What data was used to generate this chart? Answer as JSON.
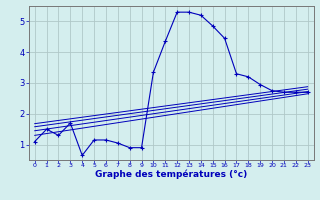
{
  "background_color": "#d4eeee",
  "grid_color": "#b0c8c8",
  "line_color": "#0000bb",
  "xlabel": "Graphe des températures (°c)",
  "xlim": [
    -0.5,
    23.5
  ],
  "ylim": [
    0.5,
    5.5
  ],
  "yticks": [
    1,
    2,
    3,
    4,
    5
  ],
  "xticks": [
    0,
    1,
    2,
    3,
    4,
    5,
    6,
    7,
    8,
    9,
    10,
    11,
    12,
    13,
    14,
    15,
    16,
    17,
    18,
    19,
    20,
    21,
    22,
    23
  ],
  "series_main": {
    "x": [
      0,
      1,
      2,
      3,
      4,
      5,
      6,
      7,
      8,
      9,
      10,
      11,
      12,
      13,
      14,
      15,
      16,
      17,
      18,
      19,
      20,
      21,
      22,
      23
    ],
    "y": [
      1.1,
      1.5,
      1.3,
      1.7,
      0.65,
      1.15,
      1.15,
      1.05,
      0.9,
      0.9,
      3.35,
      4.35,
      5.3,
      5.3,
      5.2,
      4.85,
      4.45,
      3.3,
      3.2,
      2.95,
      2.75,
      2.7,
      2.7,
      2.7
    ]
  },
  "series_linear1": {
    "x": [
      0,
      23
    ],
    "y": [
      1.3,
      2.65
    ]
  },
  "series_linear2": {
    "x": [
      0,
      23
    ],
    "y": [
      1.45,
      2.72
    ]
  },
  "series_linear3": {
    "x": [
      0,
      23
    ],
    "y": [
      1.58,
      2.8
    ]
  },
  "series_linear4": {
    "x": [
      0,
      23
    ],
    "y": [
      1.68,
      2.88
    ]
  }
}
